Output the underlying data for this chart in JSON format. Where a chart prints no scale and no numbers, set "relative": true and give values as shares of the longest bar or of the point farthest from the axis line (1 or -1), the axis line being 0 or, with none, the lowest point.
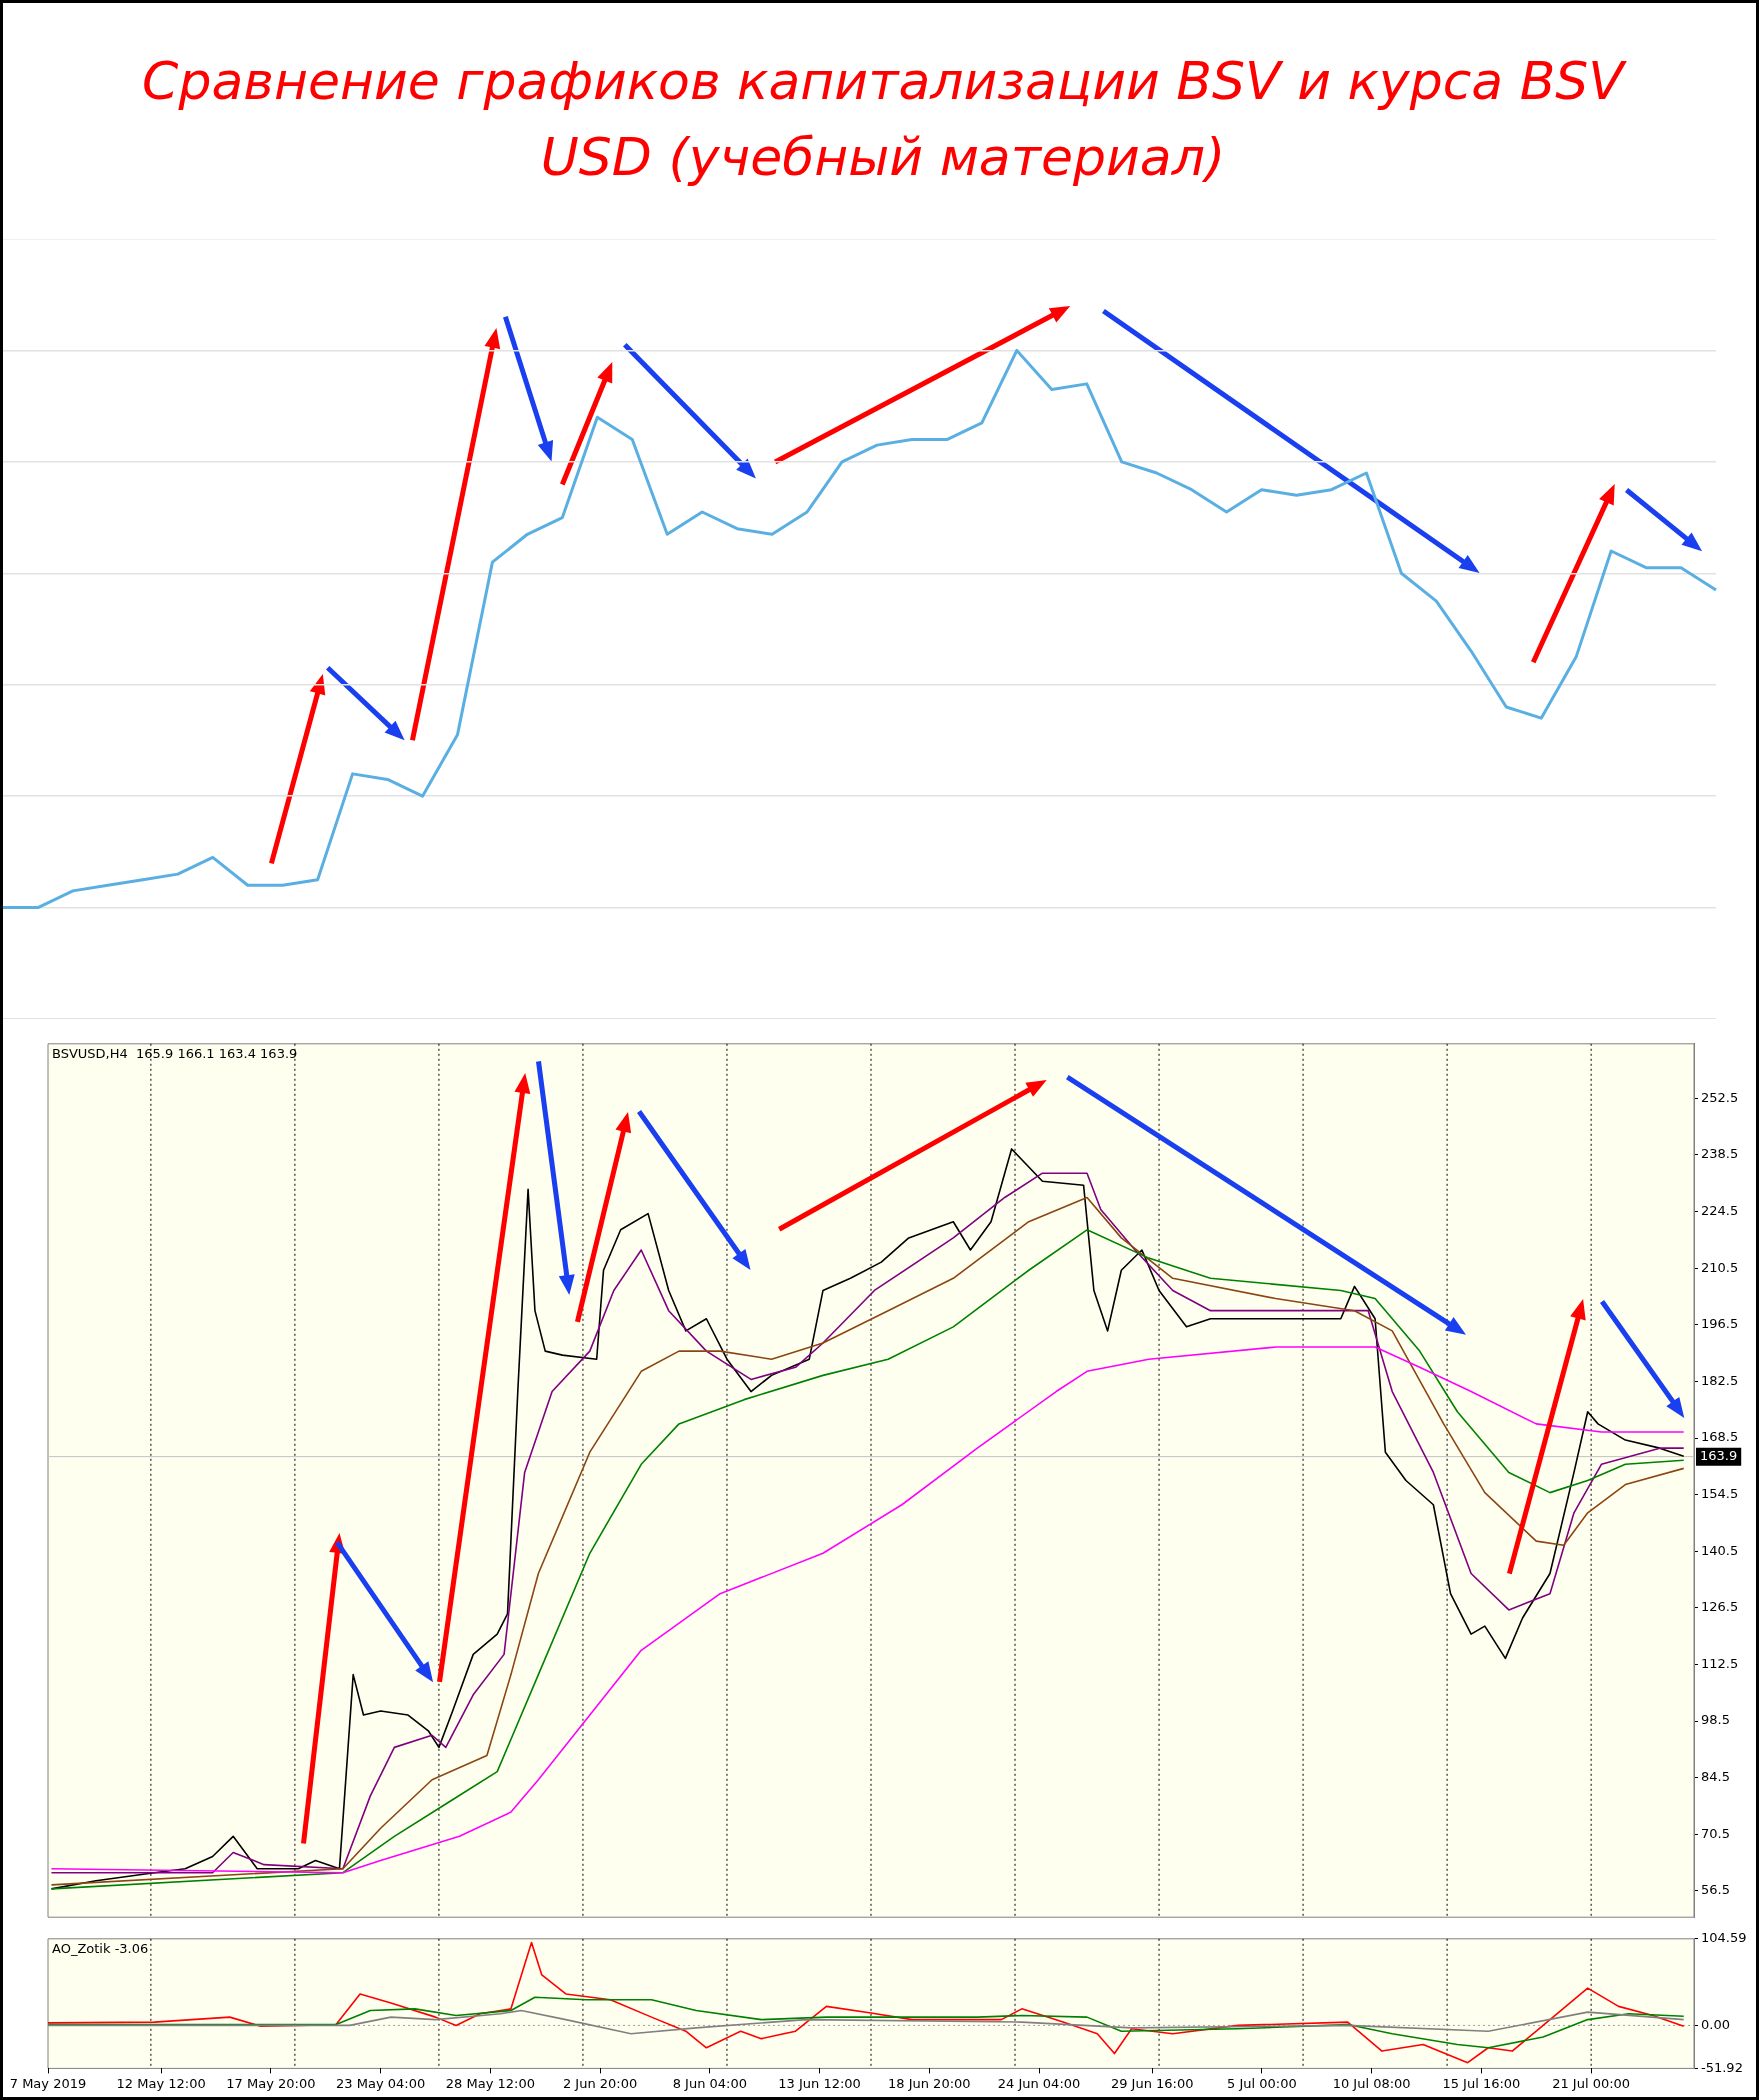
{
  "chart_data": [
    {
      "type": "line",
      "title": "Сравнение графиков капитализации BSV и курса BSV USD (учебный материал)",
      "relative": true,
      "grid": "y",
      "marker": "none",
      "line_style": "solid",
      "categories": [
        null,
        null,
        null,
        null,
        null,
        null,
        null,
        null,
        null,
        null,
        null,
        null,
        null,
        null,
        null,
        null,
        null,
        null,
        null,
        null,
        null,
        null,
        null,
        null,
        null,
        null,
        null,
        null,
        null,
        null,
        null,
        null,
        null,
        null,
        null,
        null,
        null,
        null,
        null,
        null,
        null,
        null,
        null,
        null,
        null,
        null,
        null,
        null,
        null,
        null
      ],
      "series": [
        {
          "color": "#5aafe2",
          "values": [
            0,
            0,
            0.03,
            0.04,
            0.05,
            0.06,
            0.09,
            0.04,
            0.04,
            0.05,
            0.24,
            0.23,
            0.2,
            0.31,
            0.62,
            0.67,
            0.7,
            0.88,
            0.84,
            0.67,
            0.71,
            0.68,
            0.67,
            0.71,
            0.8,
            0.83,
            0.84,
            0.84,
            0.87,
            1,
            0.93,
            0.94,
            0.8,
            0.78,
            0.75,
            0.71,
            0.75,
            0.74,
            0.75,
            0.78,
            0.6,
            0.55,
            0.46,
            0.36,
            0.34,
            0.45,
            0.64,
            0.61,
            0.61,
            0.57
          ]
        }
      ]
    },
    {
      "type": "line",
      "marker": "none",
      "line_style": "solid",
      "tick_labels": "y",
      "annotations": [
        "BSVUSD,H4  165.9 166.1 163.4 163.9"
      ],
      "xlim": [
        "2019-05-07T00:00",
        "2019-07-26T00:00"
      ],
      "ylim": [
        50,
        266
      ],
      "yticks": [
        56.5,
        70.5,
        84.5,
        98.5,
        112.5,
        126.5,
        140.5,
        154.5,
        168.5,
        182.5,
        196.5,
        210.5,
        224.5,
        238.5,
        252.5
      ],
      "ref_lines": [
        {
          "axis": "x",
          "value": "2019-05-12T00:00",
          "color": "#000000",
          "line_style": "dotted"
        },
        {
          "axis": "x",
          "value": "2019-05-19T00:00",
          "color": "#000000",
          "line_style": "dotted"
        },
        {
          "axis": "x",
          "value": "2019-05-26T00:00",
          "color": "#000000",
          "line_style": "dotted"
        },
        {
          "axis": "x",
          "value": "2019-06-02T00:00",
          "color": "#000000",
          "line_style": "dotted"
        },
        {
          "axis": "x",
          "value": "2019-06-09T00:00",
          "color": "#000000",
          "line_style": "dotted"
        },
        {
          "axis": "x",
          "value": "2019-06-16T00:00",
          "color": "#000000",
          "line_style": "dotted"
        },
        {
          "axis": "x",
          "value": "2019-06-23T00:00",
          "color": "#000000",
          "line_style": "dotted"
        },
        {
          "axis": "x",
          "value": "2019-06-30T00:00",
          "color": "#000000",
          "line_style": "dotted"
        },
        {
          "axis": "x",
          "value": "2019-07-07T00:00",
          "color": "#000000",
          "line_style": "dotted"
        },
        {
          "axis": "x",
          "value": "2019-07-14T00:00",
          "color": "#000000",
          "line_style": "dotted"
        },
        {
          "axis": "x",
          "value": "2019-07-21T00:00",
          "color": "#000000",
          "line_style": "dotted"
        },
        {
          "axis": "y",
          "value": 163.9,
          "label": "163.9",
          "color": "#c0c0c0",
          "line_style": "solid"
        }
      ],
      "x": [
        "2019-05-07T04:00",
        "2019-05-09T08:00",
        "2019-05-12T04:00",
        "2019-05-13T16:00",
        "2019-05-15T00:00",
        "2019-05-16T00:00",
        "2019-05-17T04:00",
        "2019-05-19T04:00",
        "2019-05-20T00:00",
        "2019-05-21T04:00",
        "2019-05-21T20:00",
        "2019-05-22T08:00",
        "2019-05-23T04:00",
        "2019-05-24T12:00",
        "2019-05-25T12:00",
        "2019-05-26T00:00",
        "2019-05-26T16:00",
        "2019-05-27T16:00",
        "2019-05-28T20:00",
        "2019-05-29T08:00",
        "2019-05-29T20:00",
        "2019-05-30T08:00",
        "2019-05-30T16:00",
        "2019-05-31T04:00",
        "2019-06-01T00:00",
        "2019-06-02T16:00",
        "2019-06-03T00:00",
        "2019-06-03T20:00",
        "2019-06-05T04:00",
        "2019-06-06T04:00",
        "2019-06-07T00:00",
        "2019-06-08T00:00",
        "2019-06-09T00:00",
        "2019-06-10T04:00",
        "2019-06-11T04:00",
        "2019-06-13T00:00",
        "2019-06-13T16:00",
        "2019-06-15T00:00",
        "2019-06-16T12:00",
        "2019-06-17T20:00",
        "2019-06-20T00:00",
        "2019-06-20T20:00",
        "2019-06-21T20:00",
        "2019-06-22T20:00",
        "2019-06-24T08:00",
        "2019-06-26T08:00",
        "2019-06-26T20:00",
        "2019-06-27T12:00",
        "2019-06-28T04:00",
        "2019-06-29T04:00",
        "2019-06-30T00:00",
        "2019-07-01T08:00",
        "2019-07-02T12:00",
        "2019-07-05T16:00",
        "2019-07-08T20:00",
        "2019-07-09T12:00",
        "2019-07-10T12:00",
        "2019-07-11T00:00",
        "2019-07-12T00:00",
        "2019-07-13T08:00",
        "2019-07-14T04:00",
        "2019-07-15T04:00",
        "2019-07-15T20:00",
        "2019-07-16T20:00",
        "2019-07-17T16:00",
        "2019-07-19T00:00",
        "2019-07-20T04:00",
        "2019-07-20T20:00",
        "2019-07-21T08:00",
        "2019-07-22T16:00",
        "2019-07-24T08:00",
        "2019-07-25T12:00"
      ],
      "series": [
        {
          "color": "#ff00ff",
          "x": [
            "2019-05-07T04:00",
            "2019-05-21T08:00",
            "2019-05-23T04:00",
            "2019-05-27T00:00",
            "2019-05-29T12:00",
            "2019-05-30T20:00",
            "2019-06-02T08:00",
            "2019-06-04T20:00",
            "2019-06-08T16:00",
            "2019-06-13T16:00",
            "2019-06-17T12:00",
            "2019-06-21T04:00",
            "2019-06-25T00:00",
            "2019-06-26T12:00",
            "2019-06-29T12:00",
            "2019-07-05T16:00",
            "2019-07-10T12:00",
            "2019-07-12T16:00",
            "2019-07-15T04:00",
            "2019-07-18T08:00",
            "2019-07-21T12:00",
            "2019-07-25T12:00"
          ],
          "values": [
            62,
            61,
            64,
            70,
            76,
            84,
            100,
            116,
            130,
            140,
            152,
            166,
            180,
            185,
            188,
            191,
            191,
            186,
            180,
            172,
            170,
            170
          ]
        },
        {
          "color": "#008000",
          "x": [
            "2019-05-07T04:00",
            "2019-05-21T08:00",
            "2019-05-23T20:00",
            "2019-05-26T08:00",
            "2019-05-28T20:00",
            "2019-05-30T20:00",
            "2019-06-02T08:00",
            "2019-06-04T20:00",
            "2019-06-06T16:00",
            "2019-06-09T20:00",
            "2019-06-13T16:00",
            "2019-06-16T20:00",
            "2019-06-20T00:00",
            "2019-06-23T16:00",
            "2019-06-26T12:00",
            "2019-06-29T12:00",
            "2019-07-02T12:00",
            "2019-07-08T20:00",
            "2019-07-10T12:00",
            "2019-07-12T16:00",
            "2019-07-14T12:00",
            "2019-07-17T00:00",
            "2019-07-19T00:00",
            "2019-07-20T20:00",
            "2019-07-22T16:00",
            "2019-07-25T12:00"
          ],
          "values": [
            57,
            61,
            70,
            78,
            86,
            110,
            140,
            162,
            172,
            178,
            184,
            188,
            196,
            210,
            220,
            213,
            208,
            205,
            203,
            190,
            175,
            160,
            155,
            158,
            162,
            163
          ]
        },
        {
          "color": "#8b4513",
          "x": [
            "2019-05-07T04:00",
            "2019-05-21T08:00",
            "2019-05-23T04:00",
            "2019-05-25T16:00",
            "2019-05-28T08:00",
            "2019-05-29T12:00",
            "2019-05-30T20:00",
            "2019-06-02T08:00",
            "2019-06-04T20:00",
            "2019-06-06T16:00",
            "2019-06-08T16:00",
            "2019-06-11T04:00",
            "2019-06-13T16:00",
            "2019-06-16T20:00",
            "2019-06-20T00:00",
            "2019-06-23T16:00",
            "2019-06-26T12:00",
            "2019-06-28T04:00",
            "2019-06-30T16:00",
            "2019-07-05T16:00",
            "2019-07-09T12:00",
            "2019-07-11T08:00",
            "2019-07-13T20:00",
            "2019-07-15T20:00",
            "2019-07-18T08:00",
            "2019-07-19T16:00",
            "2019-07-20T20:00",
            "2019-07-22T16:00",
            "2019-07-25T12:00"
          ],
          "values": [
            58,
            62,
            72,
            84,
            90,
            110,
            135,
            165,
            185,
            190,
            190,
            188,
            192,
            200,
            208,
            222,
            228,
            218,
            208,
            203,
            200,
            195,
            172,
            155,
            143,
            142,
            150,
            157,
            161
          ]
        },
        {
          "color": "#800080",
          "x": [
            "2019-05-07T04:00",
            "2019-05-15T00:00",
            "2019-05-16T00:00",
            "2019-05-17T12:00",
            "2019-05-21T08:00",
            "2019-05-22T16:00",
            "2019-05-23T20:00",
            "2019-05-25T16:00",
            "2019-05-26T08:00",
            "2019-05-27T16:00",
            "2019-05-29T04:00",
            "2019-05-30T04:00",
            "2019-05-31T12:00",
            "2019-06-02T08:00",
            "2019-06-03T12:00",
            "2019-06-04T20:00",
            "2019-06-06T04:00",
            "2019-06-08T00:00",
            "2019-06-10T04:00",
            "2019-06-12T08:00",
            "2019-06-13T16:00",
            "2019-06-16T04:00",
            "2019-06-20T00:00",
            "2019-06-22T12:00",
            "2019-06-24T08:00",
            "2019-06-26T12:00",
            "2019-06-27T04:00",
            "2019-06-28T20:00",
            "2019-06-30T16:00",
            "2019-07-02T12:00",
            "2019-07-08T20:00",
            "2019-07-10T04:00",
            "2019-07-11T08:00",
            "2019-07-13T08:00",
            "2019-07-15T04:00",
            "2019-07-17T00:00",
            "2019-07-19T00:00",
            "2019-07-20T04:00",
            "2019-07-21T12:00",
            "2019-07-24T08:00",
            "2019-07-25T12:00"
          ],
          "values": [
            61,
            61,
            66,
            63,
            62,
            80,
            92,
            95,
            92,
            105,
            115,
            160,
            180,
            190,
            205,
            215,
            200,
            190,
            183,
            186,
            192,
            205,
            218,
            228,
            234,
            234,
            225,
            215,
            205,
            200,
            200,
            200,
            180,
            160,
            135,
            126,
            130,
            150,
            162,
            166,
            166
          ]
        },
        {
          "color": "#000000",
          "values": [
            57,
            59,
            61,
            62,
            65,
            70,
            62,
            62,
            64,
            62,
            110,
            100,
            101,
            100,
            96,
            92,
            101,
            115,
            120,
            125,
            180,
            230,
            200,
            190,
            189,
            188,
            210,
            220,
            224,
            205,
            195,
            198,
            188,
            180,
            184,
            188,
            205,
            208,
            212,
            218,
            222,
            215,
            222,
            240,
            232,
            231,
            205,
            195,
            210,
            215,
            205,
            196,
            198,
            198,
            198,
            206,
            198,
            165,
            158,
            152,
            130,
            120,
            122,
            114,
            124,
            135,
            160,
            175,
            172,
            168,
            166,
            164
          ]
        }
      ]
    },
    {
      "type": "line",
      "marker": "none",
      "line_style": "solid",
      "annotations": [
        "AO_Zotik -3.06"
      ],
      "xlim": [
        "2019-05-07T00:00",
        "2019-07-26T00:00"
      ],
      "ylim": [
        -51.92,
        104.59
      ],
      "xticks": [
        {
          "value": "2019-05-07T00:00",
          "label": "7 May 2019"
        },
        {
          "value": "2019-05-12T12:00",
          "label": "12 May 12:00"
        },
        {
          "value": "2019-05-17T20:00",
          "label": "17 May 20:00"
        },
        {
          "value": "2019-05-23T04:00",
          "label": "23 May 04:00"
        },
        {
          "value": "2019-05-28T12:00",
          "label": "28 May 12:00"
        },
        {
          "value": "2019-06-02T20:00",
          "label": "2 Jun 20:00"
        },
        {
          "value": "2019-06-08T04:00",
          "label": "8 Jun 04:00"
        },
        {
          "value": "2019-06-13T12:00",
          "label": "13 Jun 12:00"
        },
        {
          "value": "2019-06-18T20:00",
          "label": "18 Jun 20:00"
        },
        {
          "value": "2019-06-24T04:00",
          "label": "24 Jun 04:00"
        },
        {
          "value": "2019-06-29T16:00",
          "label": "29 Jun 16:00"
        },
        {
          "value": "2019-07-05T00:00",
          "label": "5 Jul 00:00"
        },
        {
          "value": "2019-07-10T08:00",
          "label": "10 Jul 08:00"
        },
        {
          "value": "2019-07-15T16:00",
          "label": "15 Jul 16:00"
        },
        {
          "value": "2019-07-21T00:00",
          "label": "21 Jul 00:00"
        }
      ],
      "yticks": [
        104.59,
        {
          "value": 0,
          "label": "0.00"
        },
        -51.92
      ],
      "ref_lines": [
        {
          "axis": "x",
          "value": "2019-05-12T00:00",
          "color": "#000000",
          "line_style": "dotted"
        },
        {
          "axis": "x",
          "value": "2019-05-19T00:00",
          "color": "#000000",
          "line_style": "dotted"
        },
        {
          "axis": "x",
          "value": "2019-05-26T00:00",
          "color": "#000000",
          "line_style": "dotted"
        },
        {
          "axis": "x",
          "value": "2019-06-02T00:00",
          "color": "#000000",
          "line_style": "dotted"
        },
        {
          "axis": "x",
          "value": "2019-06-09T00:00",
          "color": "#000000",
          "line_style": "dotted"
        },
        {
          "axis": "x",
          "value": "2019-06-16T00:00",
          "color": "#000000",
          "line_style": "dotted"
        },
        {
          "axis": "x",
          "value": "2019-06-23T00:00",
          "color": "#000000",
          "line_style": "dotted"
        },
        {
          "axis": "x",
          "value": "2019-06-30T00:00",
          "color": "#000000",
          "line_style": "dotted"
        },
        {
          "axis": "x",
          "value": "2019-07-07T00:00",
          "color": "#000000",
          "line_style": "dotted"
        },
        {
          "axis": "x",
          "value": "2019-07-14T00:00",
          "color": "#000000",
          "line_style": "dotted"
        },
        {
          "axis": "x",
          "value": "2019-07-21T00:00",
          "color": "#000000",
          "line_style": "dotted"
        },
        {
          "axis": "y",
          "value": 0,
          "color": "#a0a0a0",
          "line_style": "dotted"
        }
      ],
      "series": [
        {
          "color": "#808080",
          "x": [
            "2019-05-07T00:00",
            "2019-05-21T16:00",
            "2019-05-23T16:00",
            "2019-05-25T20:00",
            "2019-05-29T00:00",
            "2019-05-30T00:00",
            "2019-06-01T04:00",
            "2019-06-04T08:00",
            "2019-06-07T12:00",
            "2019-06-12T20:00",
            "2019-06-23T08:00",
            "2019-06-28T16:00",
            "2019-07-09T04:00",
            "2019-07-16T00:00",
            "2019-07-20T20:00",
            "2019-07-25T12:00"
          ],
          "values": [
            0,
            0,
            10,
            7,
            14,
            18,
            7,
            -10,
            -3,
            7,
            4,
            -3,
            0,
            -7,
            16,
            7
          ]
        },
        {
          "color": "#008000",
          "x": [
            "2019-05-07T00:00",
            "2019-05-21T00:00",
            "2019-05-22T16:00",
            "2019-05-24T20:00",
            "2019-05-26T20:00",
            "2019-05-29T12:00",
            "2019-05-30T16:00",
            "2019-06-02T04:00",
            "2019-06-05T08:00",
            "2019-06-07T12:00",
            "2019-06-10T16:00",
            "2019-06-13T20:00",
            "2019-06-21T04:00",
            "2019-06-23T08:00",
            "2019-06-26T12:00",
            "2019-06-28T04:00",
            "2019-07-03T20:00",
            "2019-07-09T04:00",
            "2019-07-11T08:00",
            "2019-07-14T12:00",
            "2019-07-16T00:00",
            "2019-07-18T16:00",
            "2019-07-20T20:00",
            "2019-07-22T20:00",
            "2019-07-25T12:00"
          ],
          "values": [
            1,
            1,
            18,
            20,
            12,
            18,
            34,
            31,
            31,
            18,
            7,
            10,
            10,
            12,
            10,
            -7,
            -4,
            1,
            -10,
            -23,
            -27,
            -14,
            7,
            14,
            11
          ]
        },
        {
          "color": "#ff0000",
          "x": [
            "2019-05-07T00:00",
            "2019-05-12T04:00",
            "2019-05-15T20:00",
            "2019-05-17T08:00",
            "2019-05-21T00:00",
            "2019-05-22T04:00",
            "2019-05-23T16:00",
            "2019-05-25T20:00",
            "2019-05-26T20:00",
            "2019-05-28T00:00",
            "2019-05-29T12:00",
            "2019-05-30T12:00",
            "2019-05-31T00:00",
            "2019-06-01T04:00",
            "2019-06-03T08:00",
            "2019-06-05T08:00",
            "2019-06-07T00:00",
            "2019-06-08T00:00",
            "2019-06-09T16:00",
            "2019-06-10T16:00",
            "2019-06-12T08:00",
            "2019-06-13T20:00",
            "2019-06-16T00:00",
            "2019-06-18T00:00",
            "2019-06-22T08:00",
            "2019-06-23T08:00",
            "2019-06-25T08:00",
            "2019-06-27T00:00",
            "2019-06-27T20:00",
            "2019-06-28T16:00",
            "2019-06-30T16:00",
            "2019-07-03T20:00",
            "2019-07-09T04:00",
            "2019-07-10T20:00",
            "2019-07-12T20:00",
            "2019-07-15T00:00",
            "2019-07-16T00:00",
            "2019-07-17T04:00",
            "2019-07-18T16:00",
            "2019-07-20T20:00",
            "2019-07-22T08:00",
            "2019-07-24T00:00",
            "2019-07-25T12:00"
          ],
          "values": [
            3,
            4,
            10,
            -1,
            1,
            38,
            27,
            10,
            0,
            14,
            20,
            100,
            61,
            38,
            31,
            10,
            -7,
            -27,
            -7,
            -16,
            -7,
            23,
            15,
            7,
            7,
            20,
            4,
            -10,
            -34,
            -4,
            -10,
            0,
            4,
            -31,
            -23,
            -45,
            -27,
            -31,
            0,
            45,
            23,
            12,
            -1
          ]
        }
      ]
    }
  ]
}
